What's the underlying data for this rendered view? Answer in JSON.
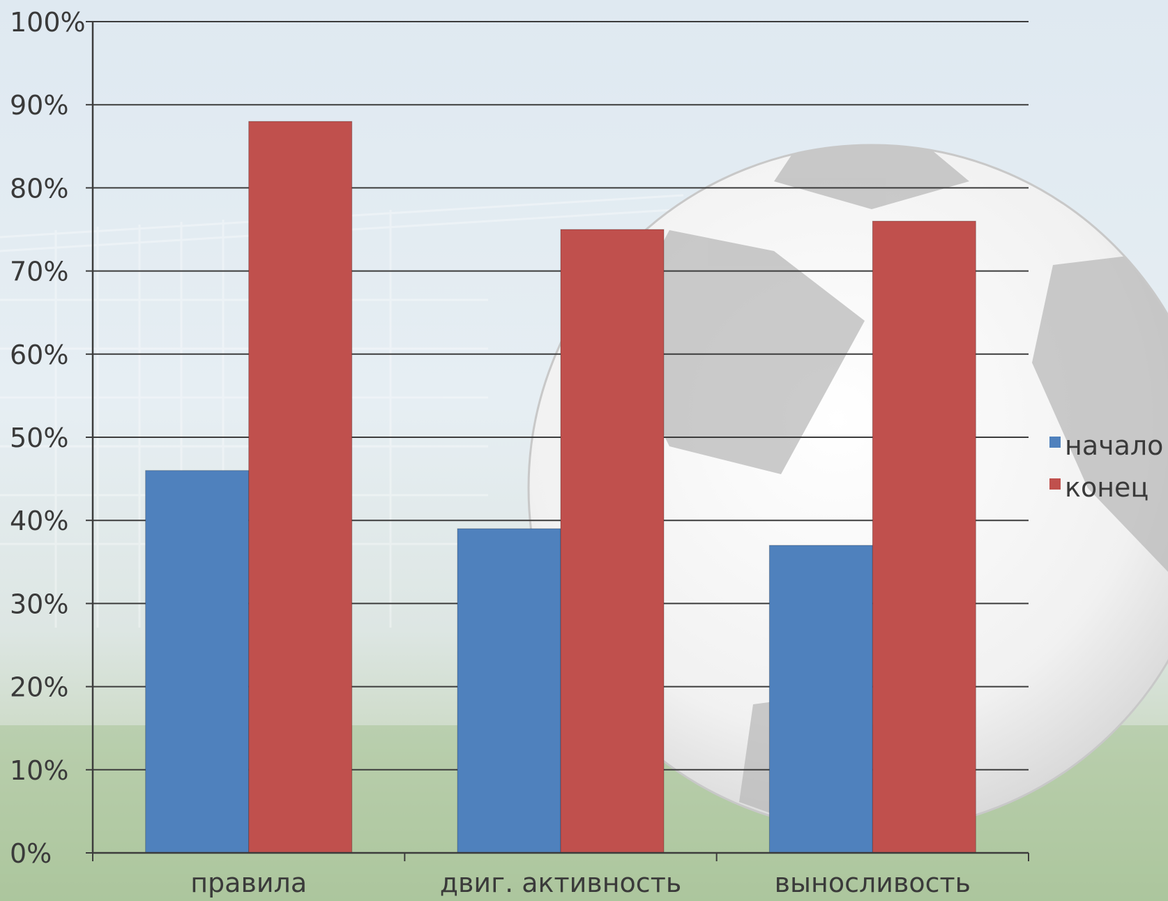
{
  "colors": {
    "series_start": "#4f81bd",
    "series_end": "#c0504d",
    "gridline": "#3c3c3c",
    "text": "#3a3a3a"
  },
  "chart_data": {
    "type": "bar",
    "title": "",
    "xlabel": "",
    "ylabel": "",
    "ylim": [
      0,
      100
    ],
    "y_ticks": [
      "0%",
      "10%",
      "20%",
      "30%",
      "40%",
      "50%",
      "60%",
      "70%",
      "80%",
      "90%",
      "100%"
    ],
    "y_tick_values": [
      0,
      10,
      20,
      30,
      40,
      50,
      60,
      70,
      80,
      90,
      100
    ],
    "categories": [
      "правила",
      "двиг. активность",
      "выносливость"
    ],
    "series": [
      {
        "name": "начало",
        "color": "#4f81bd",
        "values": [
          46,
          39,
          37
        ]
      },
      {
        "name": "конец",
        "color": "#c0504d",
        "values": [
          88,
          75,
          76
        ]
      }
    ],
    "grid": true,
    "legend_position": "right"
  }
}
